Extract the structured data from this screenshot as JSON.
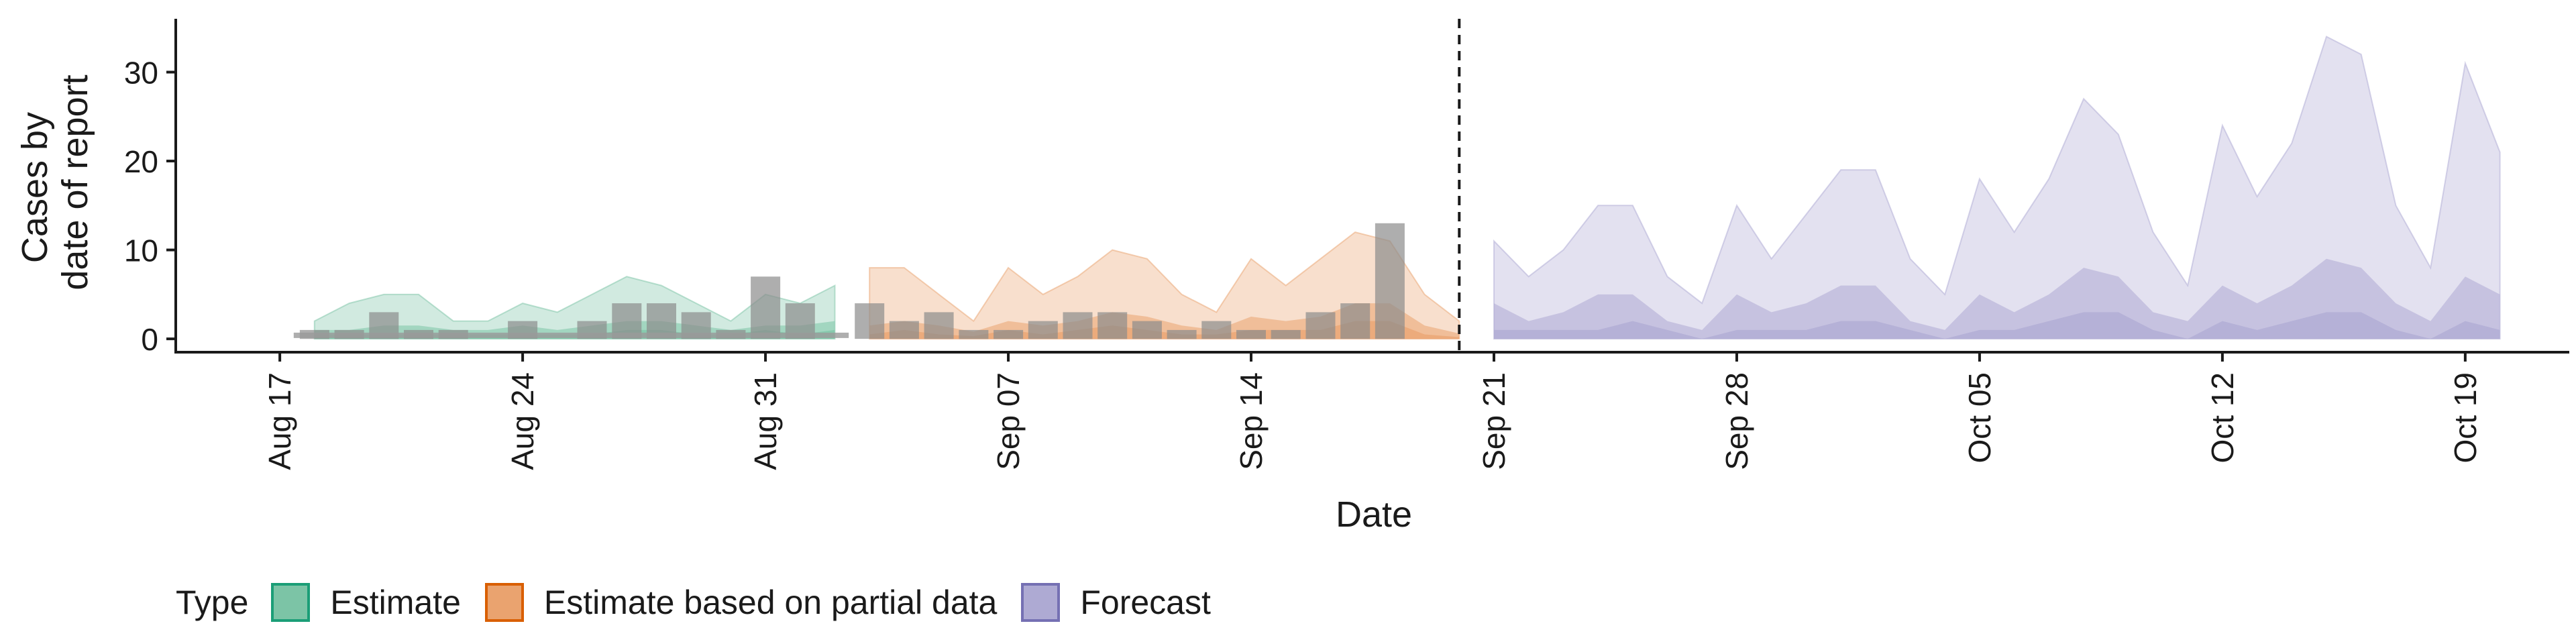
{
  "chart_data": {
    "type": "area",
    "xlabel": "Date",
    "ylabel_lines": [
      "Cases by",
      "date of report"
    ],
    "x_ticks": [
      "Aug 17",
      "Aug 24",
      "Aug 31",
      "Sep 07",
      "Sep 14",
      "Sep 21",
      "Sep 28",
      "Oct 05",
      "Oct 12",
      "Oct 19"
    ],
    "y_ticks": [
      "0",
      "10",
      "20",
      "30"
    ],
    "ylim": [
      -1.5,
      36
    ],
    "xlim": [
      "2020-08-14",
      "2020-10-22"
    ],
    "forecast_start_line": "2020-09-20",
    "legend": {
      "title": "Type",
      "items": [
        {
          "label": "Estimate",
          "fill": "#7cc4a6",
          "border": "#1b9e77"
        },
        {
          "label": "Estimate based on partial data",
          "fill": "#eaa36f",
          "border": "#d95f02"
        },
        {
          "label": "Forecast",
          "fill": "#aeaad3",
          "border": "#7570b3"
        }
      ]
    },
    "observed_cases": {
      "dates": [
        "2020-08-18",
        "2020-08-19",
        "2020-08-20",
        "2020-08-21",
        "2020-08-22",
        "2020-08-23",
        "2020-08-24",
        "2020-08-25",
        "2020-08-26",
        "2020-08-27",
        "2020-08-28",
        "2020-08-29",
        "2020-08-30",
        "2020-08-31",
        "2020-09-01",
        "2020-09-02",
        "2020-09-03",
        "2020-09-04",
        "2020-09-05",
        "2020-09-06",
        "2020-09-07",
        "2020-09-08",
        "2020-09-09",
        "2020-09-10",
        "2020-09-11",
        "2020-09-12",
        "2020-09-13",
        "2020-09-14",
        "2020-09-15",
        "2020-09-16",
        "2020-09-17",
        "2020-09-18"
      ],
      "values": [
        1,
        1,
        3,
        1,
        1,
        0,
        2,
        0,
        2,
        4,
        4,
        3,
        1,
        7,
        4,
        0,
        4,
        2,
        3,
        1,
        1,
        2,
        3,
        3,
        2,
        1,
        2,
        1,
        1,
        3,
        4,
        13
      ]
    },
    "series": [
      {
        "type": "Estimate",
        "dates": [
          "2020-08-18",
          "2020-08-19",
          "2020-08-20",
          "2020-08-21",
          "2020-08-22",
          "2020-08-23",
          "2020-08-24",
          "2020-08-25",
          "2020-08-26",
          "2020-08-27",
          "2020-08-28",
          "2020-08-29",
          "2020-08-30",
          "2020-08-31",
          "2020-09-01",
          "2020-09-02"
        ],
        "outer_upper": [
          2,
          4,
          5,
          5,
          2,
          2,
          4,
          3,
          5,
          7,
          6,
          4,
          2,
          5,
          4,
          6
        ],
        "inner_upper": [
          1,
          1,
          1.5,
          1.5,
          1,
          1,
          1.5,
          1,
          1.5,
          2,
          2,
          1.5,
          1,
          1.5,
          1.5,
          2
        ],
        "median": [
          0.5,
          0.5,
          0.5,
          0.5,
          0.5,
          0.5,
          0.5,
          0.5,
          0.5,
          1,
          1,
          0.5,
          0.5,
          1,
          0.5,
          1
        ]
      },
      {
        "type": "Estimate based on partial data",
        "dates": [
          "2020-09-03",
          "2020-09-04",
          "2020-09-05",
          "2020-09-06",
          "2020-09-07",
          "2020-09-08",
          "2020-09-09",
          "2020-09-10",
          "2020-09-11",
          "2020-09-12",
          "2020-09-13",
          "2020-09-14",
          "2020-09-15",
          "2020-09-16",
          "2020-09-17",
          "2020-09-18",
          "2020-09-19",
          "2020-09-20"
        ],
        "outer_upper": [
          8,
          8,
          5,
          2,
          8,
          5,
          7,
          10,
          9,
          5,
          3,
          9,
          6,
          9,
          12,
          11,
          5,
          2
        ],
        "inner_upper": [
          1.5,
          2,
          1.5,
          0.8,
          2,
          1.5,
          2,
          3,
          2.5,
          1.5,
          1,
          2.5,
          2,
          2.5,
          4,
          4,
          1.5,
          0.6
        ],
        "median": [
          0.5,
          1,
          0.5,
          0.3,
          1,
          0.5,
          1,
          1.5,
          1,
          0.5,
          0.5,
          1,
          1,
          1,
          2,
          2,
          0.5,
          0.2
        ]
      },
      {
        "type": "Forecast",
        "dates": [
          "2020-09-21",
          "2020-09-22",
          "2020-09-23",
          "2020-09-24",
          "2020-09-25",
          "2020-09-26",
          "2020-09-27",
          "2020-09-28",
          "2020-09-29",
          "2020-09-30",
          "2020-10-01",
          "2020-10-02",
          "2020-10-03",
          "2020-10-04",
          "2020-10-05",
          "2020-10-06",
          "2020-10-07",
          "2020-10-08",
          "2020-10-09",
          "2020-10-10",
          "2020-10-11",
          "2020-10-12",
          "2020-10-13",
          "2020-10-14",
          "2020-10-15",
          "2020-10-16",
          "2020-10-17",
          "2020-10-18",
          "2020-10-19",
          "2020-10-20"
        ],
        "outer_upper": [
          11,
          7,
          10,
          15,
          15,
          7,
          4,
          15,
          9,
          14,
          19,
          19,
          9,
          5,
          18,
          12,
          18,
          27,
          23,
          12,
          6,
          24,
          16,
          22,
          34,
          32,
          15,
          8,
          31,
          21
        ],
        "inner_upper": [
          4,
          2,
          3,
          5,
          5,
          2,
          1,
          5,
          3,
          4,
          6,
          6,
          2,
          1,
          5,
          3,
          5,
          8,
          7,
          3,
          2,
          6,
          4,
          6,
          9,
          8,
          4,
          2,
          7,
          5
        ],
        "median": [
          1,
          1,
          1,
          1,
          2,
          1,
          0,
          1,
          1,
          1,
          2,
          2,
          1,
          0,
          1,
          1,
          2,
          3,
          3,
          1,
          0,
          2,
          1,
          2,
          3,
          3,
          1,
          0,
          2,
          1
        ]
      }
    ]
  }
}
